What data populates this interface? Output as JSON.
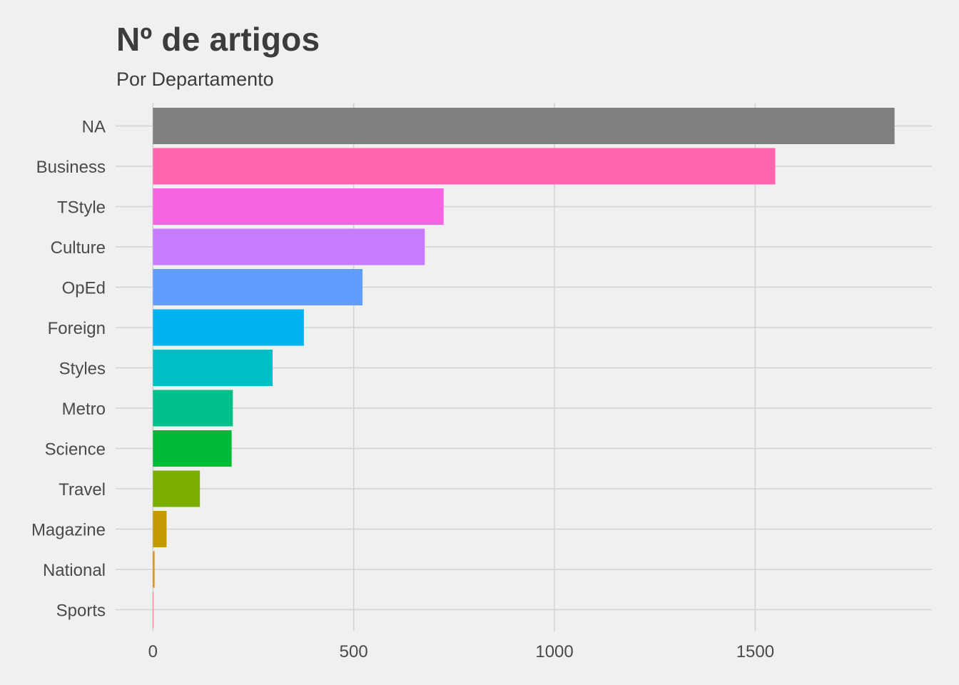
{
  "chart_data": {
    "type": "bar",
    "orientation": "horizontal",
    "title": "Nº de artigos",
    "subtitle": "Por Departamento",
    "xlabel": "",
    "ylabel": "",
    "categories": [
      "NA",
      "Business",
      "TStyle",
      "Culture",
      "OpEd",
      "Foreign",
      "Styles",
      "Metro",
      "Science",
      "Travel",
      "Magazine",
      "National",
      "Sports"
    ],
    "values": [
      1847,
      1550,
      724,
      677,
      522,
      376,
      298,
      199,
      196,
      117,
      34,
      4,
      1
    ],
    "colors": [
      "#7f7f7f",
      "#ff64b0",
      "#f564e3",
      "#c77cff",
      "#619cff",
      "#00b4ef",
      "#00bfc4",
      "#00c08b",
      "#00ba38",
      "#7cae00",
      "#c59900",
      "#de8c00",
      "#f8766d"
    ],
    "xticks": [
      0,
      500,
      1000,
      1500
    ],
    "xlim": [
      -93,
      1940
    ],
    "grid": true,
    "legend": "none"
  }
}
